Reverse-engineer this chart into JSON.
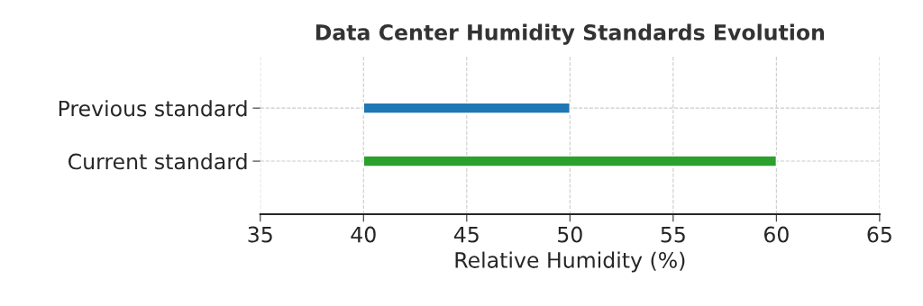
{
  "chart_data": {
    "type": "bar",
    "orientation": "horizontal",
    "title": "Data Center Humidity Standards Evolution",
    "xlabel": "Relative Humidity (%)",
    "categories": [
      "Previous standard",
      "Current standard"
    ],
    "base": [
      40,
      40
    ],
    "values": [
      10,
      20
    ],
    "colors": [
      "#1f77b4",
      "#2ca02c"
    ],
    "xlim": [
      35,
      65
    ],
    "xticks": [
      35,
      40,
      45,
      50,
      55,
      60,
      65
    ],
    "grid": true
  }
}
